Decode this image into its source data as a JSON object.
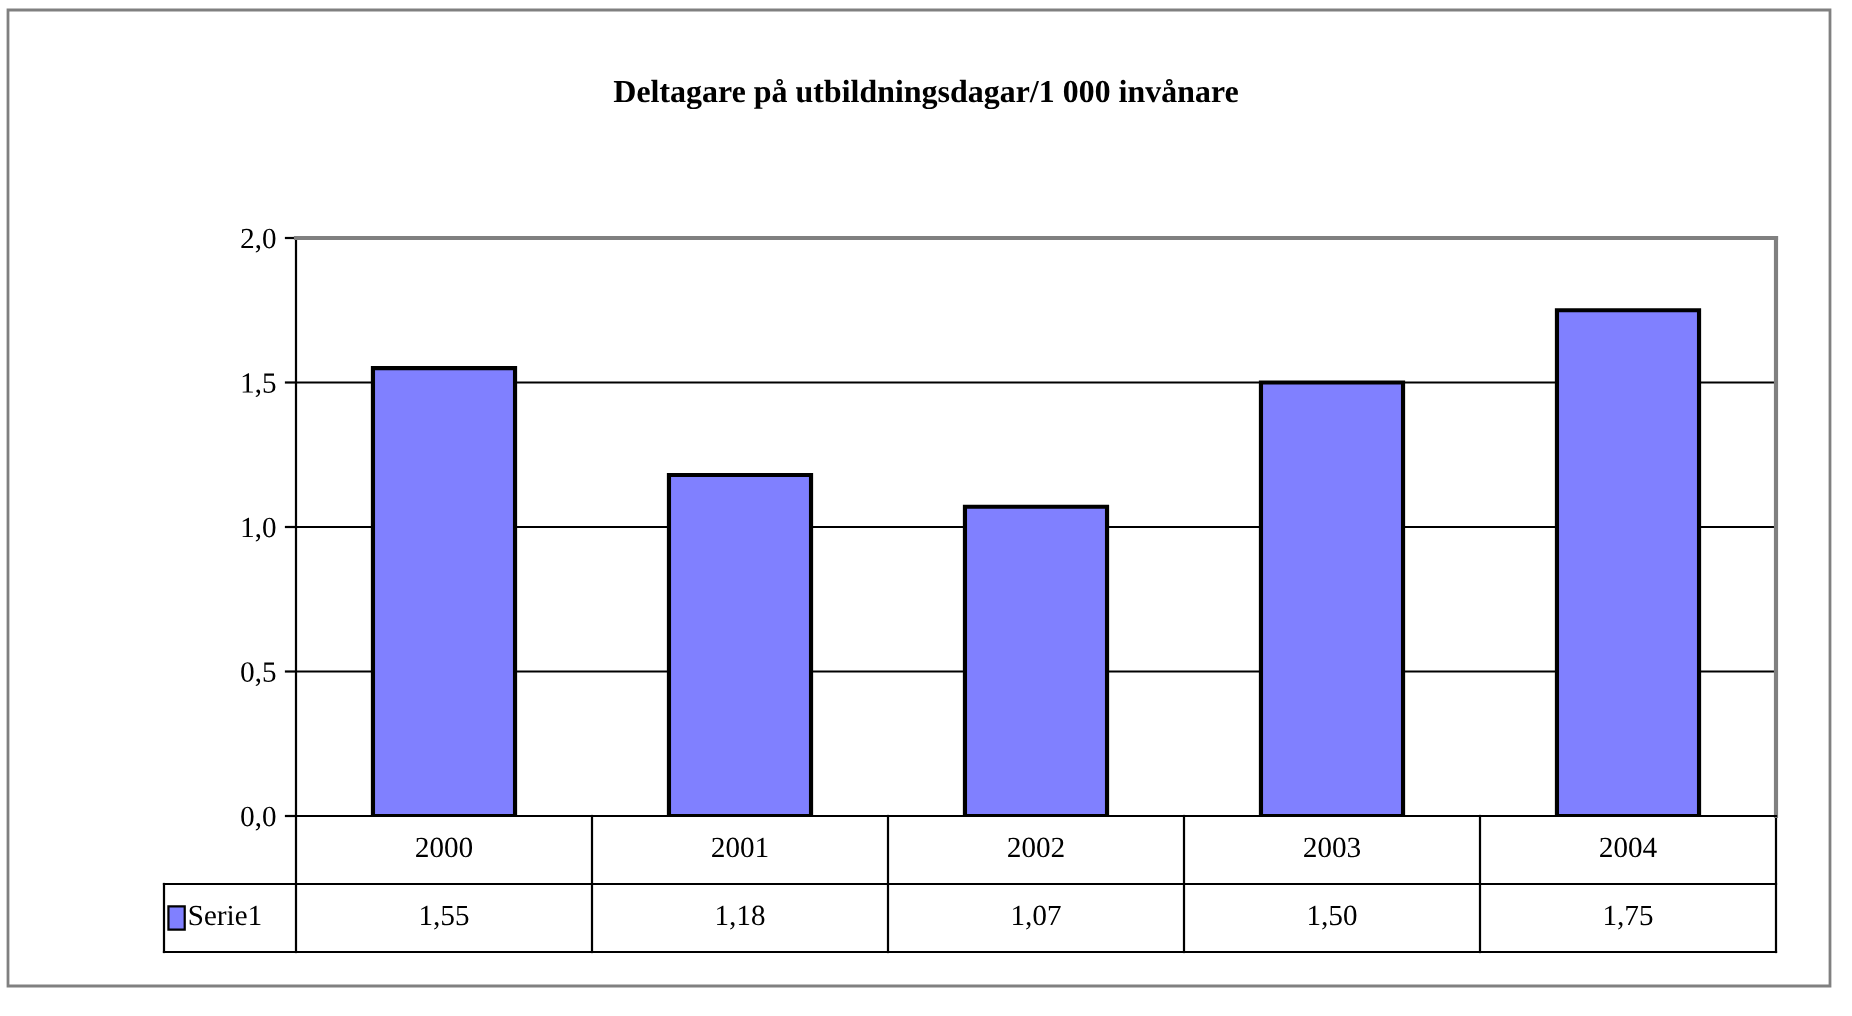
{
  "chart_data": {
    "type": "bar",
    "title": "Deltagare på utbildningsdagar/1 000 invånare",
    "categories": [
      "2000",
      "2001",
      "2002",
      "2003",
      "2004"
    ],
    "series": [
      {
        "name": "Serie1",
        "color": "#8080ff",
        "values": [
          1.55,
          1.18,
          1.07,
          1.5,
          1.75
        ],
        "value_labels": [
          "1,55",
          "1,18",
          "1,07",
          "1,50",
          "1,75"
        ]
      }
    ],
    "ylim": [
      0,
      2
    ],
    "yticks": [
      {
        "value": 0,
        "label": "0,0"
      },
      {
        "value": 0.5,
        "label": "0,5"
      },
      {
        "value": 1,
        "label": "1,0"
      },
      {
        "value": 1.5,
        "label": "1,5"
      },
      {
        "value": 2,
        "label": "2,0"
      }
    ],
    "grid": "y"
  }
}
